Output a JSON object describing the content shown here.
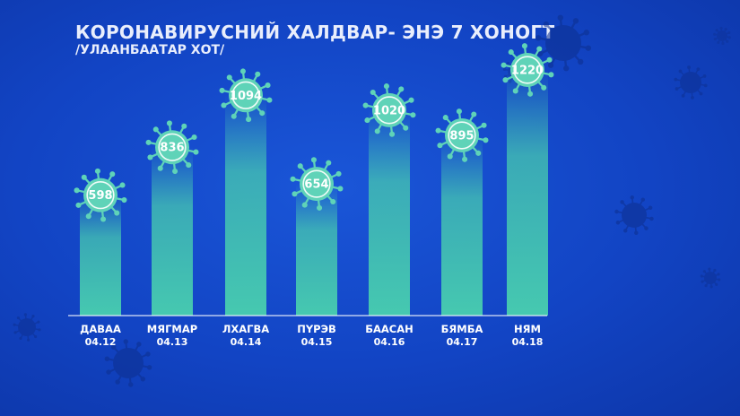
{
  "title": "КОРОНАВИРУСНИЙ ХАЛДВАР- ЭНЭ 7 ХОНОГТ",
  "subtitle": "/УЛААНБААТАР ХОТ/",
  "colors": {
    "background": "#1448cc",
    "bar": "#46c9b0",
    "virus": "#5fd3b8",
    "virus_ring": "#ffffff",
    "text": "#ffffff",
    "bg_virus": "#0d2f8e"
  },
  "chart_data": {
    "type": "bar",
    "categories": [
      "ДАВАА",
      "МЯГМАР",
      "ЛХАГВА",
      "ПҮРЭВ",
      "БААСАН",
      "БЯМБА",
      "НЯМ"
    ],
    "dates": [
      "04.12",
      "04.13",
      "04.14",
      "04.15",
      "04.16",
      "04.17",
      "04.18"
    ],
    "values": [
      598,
      836,
      1094,
      654,
      1020,
      895,
      1220
    ],
    "value_labels": [
      "598",
      "836",
      "1094",
      "654",
      "1020",
      "895",
      "1220"
    ],
    "title": "КОРОНАВИРУСНИЙ ХАЛДВАР- ЭНЭ 7 ХОНОГТ",
    "xlabel": "",
    "ylabel": "",
    "ylim": [
      0,
      1300
    ],
    "grid": false,
    "legend": "none"
  }
}
